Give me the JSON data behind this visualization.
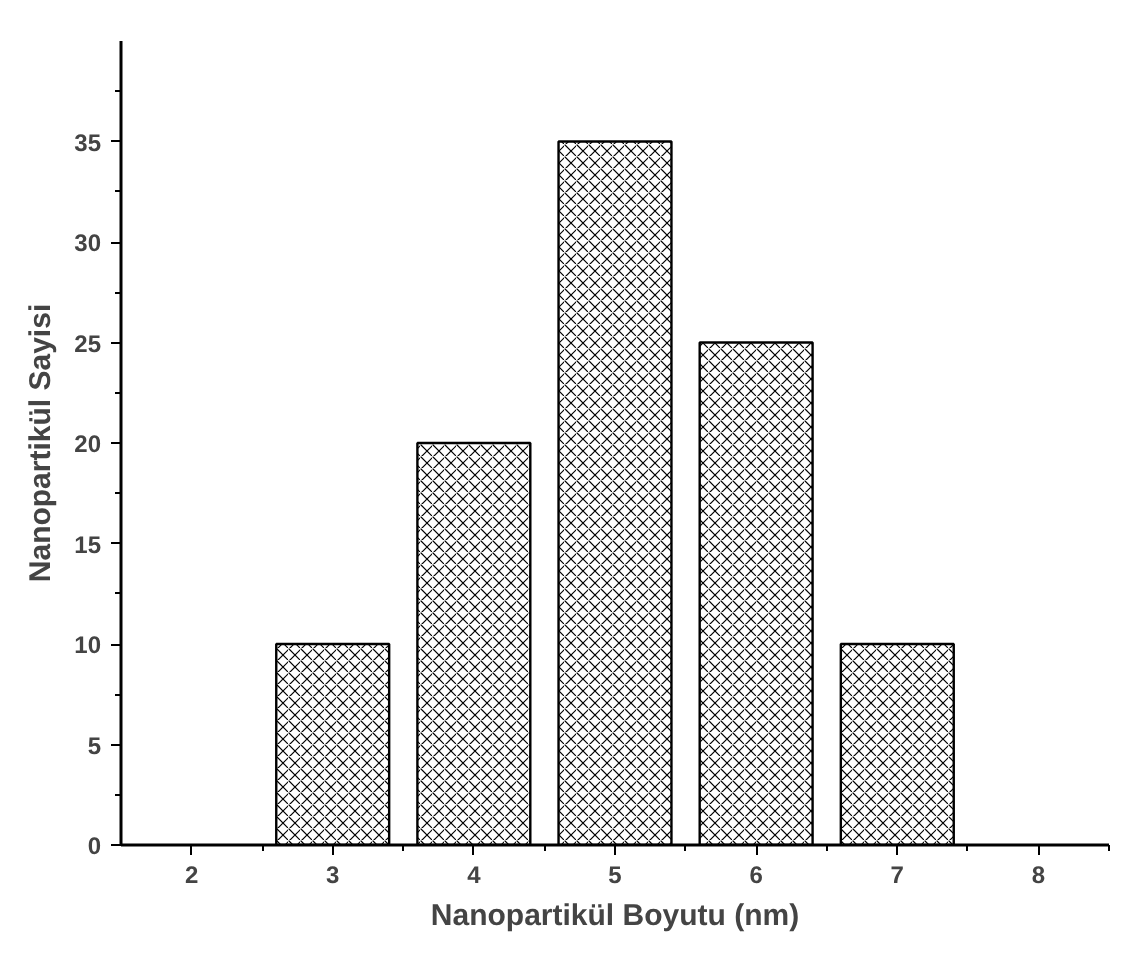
{
  "chart_data": {
    "type": "bar",
    "xlabel": "Nanopartikül Boyutu (nm)",
    "ylabel": "Nanopartikül Sayisi",
    "x": [
      3,
      4,
      5,
      6,
      7
    ],
    "values": [
      10,
      20,
      35,
      25,
      10
    ],
    "color": "#000000",
    "xlim": [
      1.5,
      8.5
    ],
    "xticks": [
      2,
      3,
      4,
      5,
      6,
      7,
      8
    ],
    "ylim": [
      0,
      40
    ],
    "yticks": [
      0,
      5,
      10,
      15,
      20,
      25,
      30,
      35
    ],
    "grid": false
  }
}
